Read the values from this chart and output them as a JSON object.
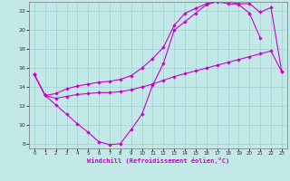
{
  "xlabel": "Windchill (Refroidissement éolien,°C)",
  "bg_color": "#c2e8e8",
  "line_color": "#cc00cc",
  "grid_color": "#a0d0d0",
  "xlim": [
    -0.5,
    23.5
  ],
  "ylim": [
    7.5,
    23.0
  ],
  "yticks": [
    8,
    10,
    12,
    14,
    16,
    18,
    20,
    22
  ],
  "xticks": [
    0,
    1,
    2,
    3,
    4,
    5,
    6,
    7,
    8,
    9,
    10,
    11,
    12,
    13,
    14,
    15,
    16,
    17,
    18,
    19,
    20,
    21,
    22,
    23
  ],
  "curve1_x": [
    0,
    1,
    2,
    3,
    4,
    5,
    6,
    7,
    8,
    9,
    10,
    11,
    12,
    13,
    14,
    15,
    16,
    17,
    18,
    19,
    20,
    21
  ],
  "curve1_y": [
    15.3,
    13.1,
    12.1,
    11.1,
    10.1,
    9.2,
    8.2,
    7.9,
    8.0,
    9.5,
    11.1,
    14.2,
    16.5,
    20.0,
    20.9,
    21.8,
    22.7,
    23.0,
    22.8,
    22.7,
    21.8,
    19.2
  ],
  "curve2_x": [
    0,
    1,
    2,
    3,
    4,
    5,
    6,
    7,
    8,
    9,
    10,
    11,
    12,
    13,
    14,
    15,
    16,
    17,
    18,
    19,
    20,
    21,
    22,
    23
  ],
  "curve2_y": [
    15.3,
    13.1,
    12.8,
    13.0,
    13.2,
    13.3,
    13.4,
    13.4,
    13.5,
    13.7,
    14.0,
    14.3,
    14.7,
    15.1,
    15.4,
    15.7,
    16.0,
    16.3,
    16.6,
    16.9,
    17.2,
    17.5,
    17.8,
    15.6
  ],
  "curve3_x": [
    0,
    1,
    2,
    3,
    4,
    5,
    6,
    7,
    8,
    9,
    10,
    11,
    12,
    13,
    14,
    15,
    16,
    17,
    18,
    19,
    20,
    21,
    22,
    23
  ],
  "curve3_y": [
    15.3,
    13.1,
    13.3,
    13.8,
    14.1,
    14.3,
    14.5,
    14.6,
    14.8,
    15.2,
    16.0,
    17.0,
    18.2,
    20.5,
    21.8,
    22.3,
    22.8,
    23.1,
    23.0,
    22.8,
    22.8,
    21.9,
    22.4,
    15.6
  ]
}
